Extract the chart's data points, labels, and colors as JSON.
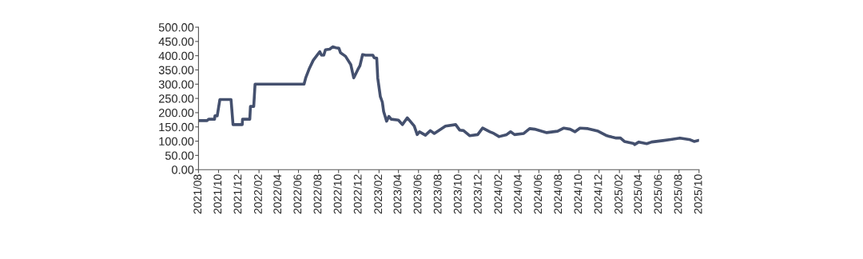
{
  "chart_data": {
    "type": "line",
    "x": [
      "2021-08-01",
      "2021-08-27",
      "2021-09-01",
      "2021-09-19",
      "2021-09-20",
      "2021-09-27",
      "2021-10-05",
      "2021-11-08",
      "2021-11-14",
      "2021-12-12",
      "2021-12-13",
      "2022-01-04",
      "2022-01-06",
      "2022-01-16",
      "2022-01-20",
      "2022-06-18",
      "2022-06-23",
      "2022-07-04",
      "2022-07-16",
      "2022-07-28",
      "2022-08-05",
      "2022-08-10",
      "2022-08-17",
      "2022-08-22",
      "2022-09-04",
      "2022-09-13",
      "2022-09-23",
      "2022-10-02",
      "2022-10-07",
      "2022-10-22",
      "2022-11-07",
      "2022-11-16",
      "2022-11-20",
      "2022-11-28",
      "2022-12-05",
      "2022-12-13",
      "2022-12-22",
      "2023-01-13",
      "2023-01-17",
      "2023-01-25",
      "2023-01-28",
      "2023-02-05",
      "2023-02-11",
      "2023-02-15",
      "2023-02-24",
      "2023-03-03",
      "2023-03-10",
      "2023-04-01",
      "2023-04-13",
      "2023-04-28",
      "2023-05-19",
      "2023-05-28",
      "2023-06-04",
      "2023-06-22",
      "2023-07-07",
      "2023-07-19",
      "2023-08-22",
      "2023-09-22",
      "2023-10-04",
      "2023-10-16",
      "2023-11-04",
      "2023-11-28",
      "2023-12-13",
      "2024-01-04",
      "2024-01-16",
      "2024-02-01",
      "2024-02-24",
      "2024-03-07",
      "2024-03-19",
      "2024-04-16",
      "2024-05-04",
      "2024-05-19",
      "2024-06-25",
      "2024-07-28",
      "2024-08-16",
      "2024-09-04",
      "2024-09-19",
      "2024-10-04",
      "2024-10-28",
      "2024-11-28",
      "2024-12-25",
      "2025-01-10",
      "2025-01-22",
      "2025-02-04",
      "2025-02-16",
      "2025-03-16",
      "2025-03-19",
      "2025-04-01",
      "2025-04-25",
      "2025-05-10",
      "2025-06-13",
      "2025-07-07",
      "2025-08-04",
      "2025-09-04",
      "2025-09-16",
      "2025-10-01"
    ],
    "series": [
      {
        "color": "#44506e",
        "values": [
          172,
          172,
          177,
          177,
          189,
          189,
          246,
          246,
          158,
          158,
          177,
          177,
          222,
          222,
          300,
          300,
          322,
          355,
          384,
          402,
          414,
          402,
          402,
          421,
          423,
          431,
          428,
          426,
          410,
          398,
          369,
          322,
          331,
          350,
          365,
          404,
          402,
          402,
          393,
          391,
          322,
          256,
          237,
          204,
          170,
          187,
          177,
          174,
          158,
          182,
          153,
          123,
          133,
          121,
          137,
          127,
          153,
          158,
          139,
          137,
          119,
          123,
          146,
          133,
          127,
          116,
          123,
          133,
          123,
          127,
          144,
          142,
          130,
          135,
          146,
          142,
          133,
          146,
          144,
          135,
          119,
          114,
          111,
          111,
          99,
          92,
          88,
          97,
          91,
          97,
          102,
          106,
          111,
          105,
          99,
          103
        ]
      }
    ],
    "xlim": [
      "2021-08-01",
      "2025-10-01"
    ],
    "xticks": [
      {
        "value": "2021-08-01",
        "label": "2021/08"
      },
      {
        "value": "2021-10-01",
        "label": "2021/10"
      },
      {
        "value": "2021-12-01",
        "label": "2021/12"
      },
      {
        "value": "2022-02-01",
        "label": "2022/02"
      },
      {
        "value": "2022-04-01",
        "label": "2022/04"
      },
      {
        "value": "2022-06-01",
        "label": "2022/06"
      },
      {
        "value": "2022-08-01",
        "label": "2022/08"
      },
      {
        "value": "2022-10-01",
        "label": "2022/10"
      },
      {
        "value": "2022-12-01",
        "label": "2022/12"
      },
      {
        "value": "2023-02-01",
        "label": "2023/02"
      },
      {
        "value": "2023-04-01",
        "label": "2023/04"
      },
      {
        "value": "2023-06-01",
        "label": "2023/06"
      },
      {
        "value": "2023-08-01",
        "label": "2023/08"
      },
      {
        "value": "2023-10-01",
        "label": "2023/10"
      },
      {
        "value": "2023-12-01",
        "label": "2023/12"
      },
      {
        "value": "2024-02-01",
        "label": "2024/02"
      },
      {
        "value": "2024-04-01",
        "label": "2024/04"
      },
      {
        "value": "2024-06-01",
        "label": "2024/06"
      },
      {
        "value": "2024-08-01",
        "label": "2024/08"
      },
      {
        "value": "2024-10-01",
        "label": "2024/10"
      },
      {
        "value": "2024-12-01",
        "label": "2024/12"
      },
      {
        "value": "2025-02-01",
        "label": "2025/02"
      },
      {
        "value": "2025-04-01",
        "label": "2025/04"
      },
      {
        "value": "2025-06-01",
        "label": "2025/06"
      },
      {
        "value": "2025-08-01",
        "label": "2025/08"
      },
      {
        "value": "2025-10-01",
        "label": "2025/10"
      }
    ],
    "ylim": [
      0,
      500
    ],
    "yticks": [
      {
        "value": 0,
        "label": "0.00"
      },
      {
        "value": 50,
        "label": "50.00"
      },
      {
        "value": 100,
        "label": "100.00"
      },
      {
        "value": 150,
        "label": "150.00"
      },
      {
        "value": 200,
        "label": "200.00"
      },
      {
        "value": 250,
        "label": "250.00"
      },
      {
        "value": 300,
        "label": "300.00"
      },
      {
        "value": 350,
        "label": "350.00"
      },
      {
        "value": 400,
        "label": "400.00"
      },
      {
        "value": 450,
        "label": "450.00"
      },
      {
        "value": 500,
        "label": "500.00"
      }
    ],
    "grid": false,
    "legend": false
  }
}
